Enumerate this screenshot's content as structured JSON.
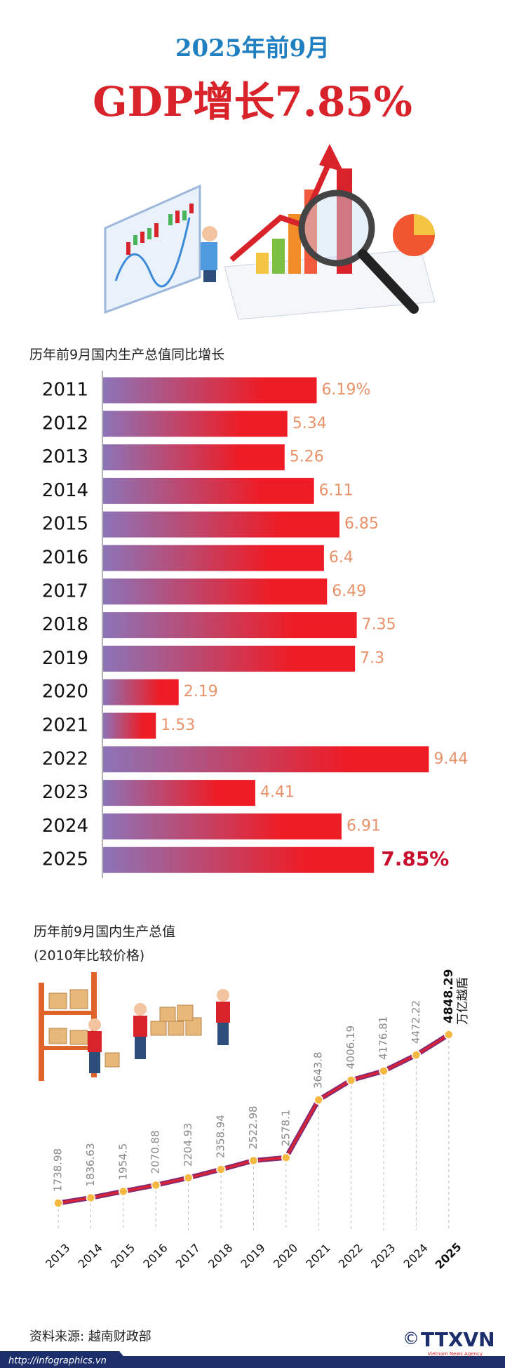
{
  "header": {
    "title": "2025年前9月",
    "headline": "GDP增长7.85%"
  },
  "chart_data": [
    {
      "type": "bar",
      "orientation": "horizontal",
      "title": "历年前9月国内生产总值同比增长",
      "categories": [
        "2011",
        "2012",
        "2013",
        "2014",
        "2015",
        "2016",
        "2017",
        "2018",
        "2019",
        "2020",
        "2021",
        "2022",
        "2023",
        "2024",
        "2025"
      ],
      "values": [
        6.19,
        5.34,
        5.26,
        6.11,
        6.85,
        6.4,
        6.49,
        7.35,
        7.3,
        2.19,
        1.53,
        9.44,
        4.41,
        6.91,
        7.85
      ],
      "value_labels": [
        "6.19%",
        "5.34",
        "5.26",
        "6.11",
        "6.85",
        "6.4",
        "6.49",
        "7.35",
        "7.3",
        "2.19",
        "1.53",
        "9.44",
        "4.41",
        "6.91",
        "7.85%"
      ],
      "colors": [
        "#8c74b8",
        "#ee1c25"
      ]
    },
    {
      "type": "line",
      "title": "历年前9月国内生产总值",
      "subtitle": "(2010年比较价格)",
      "unit": "万亿越盾",
      "categories": [
        "2013",
        "2014",
        "2015",
        "2016",
        "2017",
        "2018",
        "2019",
        "2020",
        "2021",
        "2022",
        "2023",
        "2024",
        "2025"
      ],
      "values": [
        1738.98,
        1836.63,
        1954.5,
        2070.88,
        2204.93,
        2358.94,
        2522.98,
        2578.1,
        3643.8,
        4006.19,
        4176.81,
        4472.22,
        4848.29
      ],
      "color": "#8a2a6e",
      "marker_color": "#f5b942"
    }
  ],
  "footer": {
    "source": "资料来源: 越南财政部",
    "url": "http://infographics.vn",
    "copyright": "©",
    "logo": "TTXVN",
    "agency": "Vietnam News Agency"
  }
}
